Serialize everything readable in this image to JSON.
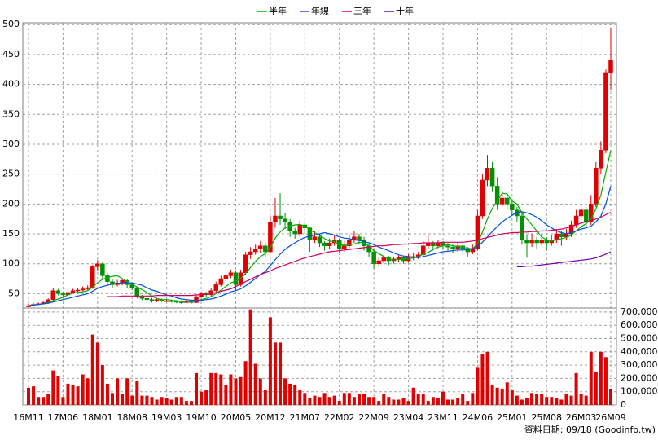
{
  "chart_data": {
    "type": "candlestick",
    "categories": [
      "16M11",
      null,
      null,
      null,
      null,
      null,
      null,
      "17M06",
      null,
      null,
      null,
      null,
      null,
      null,
      "18M01",
      null,
      null,
      null,
      null,
      null,
      null,
      "18M08",
      null,
      null,
      null,
      null,
      null,
      null,
      "19M03",
      null,
      null,
      null,
      null,
      null,
      null,
      "19M10",
      null,
      null,
      null,
      null,
      null,
      null,
      "20M05",
      null,
      null,
      null,
      null,
      null,
      null,
      "20M12",
      null,
      null,
      null,
      null,
      null,
      null,
      "21M07",
      null,
      null,
      null,
      null,
      null,
      null,
      "22M02",
      null,
      null,
      null,
      null,
      null,
      null,
      "22M09",
      null,
      null,
      null,
      null,
      null,
      null,
      "23M04",
      null,
      null,
      null,
      null,
      null,
      null,
      "23M11",
      null,
      null,
      null,
      null,
      null,
      null,
      "24M06",
      null,
      null,
      null,
      null,
      null,
      null,
      "25M01",
      null,
      null,
      null,
      null,
      null,
      null,
      "25M08",
      null,
      null,
      null,
      null,
      null,
      null,
      "26M03",
      null,
      null,
      null,
      null,
      null,
      "26M09"
    ],
    "ohlc": [
      [
        28,
        33,
        27,
        30
      ],
      [
        30,
        34,
        29,
        32
      ],
      [
        32,
        35,
        31,
        33
      ],
      [
        33,
        37,
        32,
        35
      ],
      [
        35,
        42,
        33,
        40
      ],
      [
        40,
        60,
        38,
        55
      ],
      [
        55,
        58,
        47,
        50
      ],
      [
        50,
        53,
        45,
        48
      ],
      [
        48,
        55,
        46,
        52
      ],
      [
        52,
        58,
        50,
        55
      ],
      [
        55,
        59,
        52,
        56
      ],
      [
        56,
        62,
        54,
        58
      ],
      [
        58,
        64,
        55,
        60
      ],
      [
        60,
        98,
        58,
        95
      ],
      [
        95,
        106,
        88,
        100
      ],
      [
        100,
        102,
        75,
        80
      ],
      [
        80,
        84,
        66,
        70
      ],
      [
        70,
        74,
        60,
        65
      ],
      [
        65,
        73,
        62,
        68
      ],
      [
        68,
        76,
        64,
        72
      ],
      [
        72,
        75,
        60,
        65
      ],
      [
        65,
        68,
        56,
        60
      ],
      [
        60,
        62,
        42,
        45
      ],
      [
        45,
        48,
        39,
        42
      ],
      [
        42,
        45,
        37,
        40
      ],
      [
        40,
        43,
        35,
        38
      ],
      [
        38,
        43,
        36,
        40
      ],
      [
        40,
        42,
        36,
        38
      ],
      [
        38,
        41,
        36,
        38
      ],
      [
        38,
        40,
        35,
        37
      ],
      [
        37,
        39,
        34,
        36
      ],
      [
        36,
        38,
        33,
        35
      ],
      [
        35,
        41,
        34,
        38
      ],
      [
        38,
        40,
        33,
        35
      ],
      [
        35,
        48,
        34,
        45
      ],
      [
        45,
        53,
        43,
        50
      ],
      [
        50,
        53,
        45,
        48
      ],
      [
        48,
        59,
        46,
        55
      ],
      [
        55,
        70,
        53,
        65
      ],
      [
        65,
        80,
        62,
        75
      ],
      [
        75,
        85,
        70,
        80
      ],
      [
        80,
        90,
        76,
        85
      ],
      [
        85,
        88,
        55,
        65
      ],
      [
        65,
        90,
        62,
        85
      ],
      [
        85,
        120,
        82,
        115
      ],
      [
        115,
        128,
        108,
        120
      ],
      [
        120,
        132,
        115,
        125
      ],
      [
        125,
        138,
        118,
        130
      ],
      [
        130,
        135,
        112,
        120
      ],
      [
        120,
        180,
        118,
        170
      ],
      [
        170,
        210,
        160,
        180
      ],
      [
        180,
        218,
        165,
        175
      ],
      [
        175,
        185,
        158,
        170
      ],
      [
        170,
        175,
        145,
        155
      ],
      [
        155,
        160,
        142,
        150
      ],
      [
        150,
        172,
        145,
        165
      ],
      [
        165,
        170,
        150,
        160
      ],
      [
        160,
        162,
        120,
        140
      ],
      [
        140,
        155,
        135,
        145
      ],
      [
        145,
        150,
        128,
        135
      ],
      [
        135,
        138,
        122,
        130
      ],
      [
        130,
        142,
        125,
        135
      ],
      [
        135,
        148,
        130,
        140
      ],
      [
        140,
        142,
        118,
        125
      ],
      [
        125,
        138,
        120,
        130
      ],
      [
        130,
        148,
        125,
        140
      ],
      [
        140,
        155,
        135,
        145
      ],
      [
        145,
        150,
        132,
        140
      ],
      [
        140,
        145,
        122,
        130
      ],
      [
        130,
        133,
        112,
        120
      ],
      [
        120,
        125,
        92,
        100
      ],
      [
        100,
        110,
        95,
        105
      ],
      [
        105,
        115,
        100,
        110
      ],
      [
        110,
        113,
        98,
        105
      ],
      [
        105,
        112,
        100,
        108
      ],
      [
        108,
        115,
        103,
        110
      ],
      [
        110,
        113,
        100,
        105
      ],
      [
        105,
        116,
        102,
        110
      ],
      [
        110,
        118,
        106,
        112
      ],
      [
        112,
        120,
        108,
        115
      ],
      [
        115,
        138,
        112,
        130
      ],
      [
        130,
        148,
        125,
        135
      ],
      [
        135,
        138,
        122,
        130
      ],
      [
        130,
        140,
        126,
        135
      ],
      [
        135,
        138,
        125,
        130
      ],
      [
        130,
        135,
        122,
        128
      ],
      [
        128,
        132,
        118,
        125
      ],
      [
        125,
        136,
        120,
        130
      ],
      [
        130,
        133,
        120,
        125
      ],
      [
        125,
        128,
        112,
        120
      ],
      [
        120,
        132,
        116,
        125
      ],
      [
        125,
        190,
        122,
        180
      ],
      [
        180,
        250,
        175,
        240
      ],
      [
        240,
        282,
        230,
        260
      ],
      [
        260,
        270,
        220,
        230
      ],
      [
        230,
        245,
        190,
        200
      ],
      [
        200,
        222,
        195,
        210
      ],
      [
        210,
        215,
        190,
        200
      ],
      [
        200,
        208,
        180,
        190
      ],
      [
        190,
        195,
        170,
        180
      ],
      [
        180,
        185,
        132,
        140
      ],
      [
        140,
        148,
        110,
        135
      ],
      [
        135,
        150,
        128,
        140
      ],
      [
        140,
        145,
        125,
        135
      ],
      [
        135,
        148,
        130,
        140
      ],
      [
        140,
        145,
        122,
        135
      ],
      [
        135,
        148,
        130,
        140
      ],
      [
        140,
        158,
        135,
        150
      ],
      [
        150,
        155,
        130,
        145
      ],
      [
        145,
        158,
        140,
        150
      ],
      [
        150,
        172,
        145,
        165
      ],
      [
        165,
        190,
        160,
        180
      ],
      [
        180,
        198,
        175,
        190
      ],
      [
        190,
        195,
        160,
        170
      ],
      [
        170,
        215,
        165,
        200
      ],
      [
        200,
        270,
        195,
        260
      ],
      [
        260,
        305,
        250,
        290
      ],
      [
        290,
        425,
        285,
        420
      ],
      [
        420,
        495,
        390,
        440
      ]
    ],
    "up_color": "#e00000",
    "down_color": "#009000",
    "series": [
      {
        "name": "半年",
        "color": "#00b000",
        "values": [
          30,
          31,
          32,
          33,
          35,
          38,
          41,
          44,
          48,
          51,
          52,
          53,
          55,
          61,
          68,
          74,
          77,
          79,
          80,
          75,
          70,
          66,
          61,
          57,
          52,
          46,
          42,
          40,
          40,
          39,
          38,
          37,
          37,
          37,
          38,
          40,
          42,
          45,
          50,
          56,
          62,
          68,
          71,
          75,
          84,
          94,
          104,
          112,
          117,
          127,
          143,
          153,
          160,
          163,
          165,
          166,
          163,
          157,
          152,
          148,
          142,
          138,
          137,
          132,
          131,
          132,
          133,
          136,
          135,
          130,
          122,
          117,
          112,
          108,
          106,
          107,
          108,
          108,
          110,
          112,
          116,
          119,
          124,
          128,
          130,
          132,
          130,
          129,
          128,
          126,
          125,
          134,
          153,
          175,
          193,
          205,
          218,
          217,
          205,
          200,
          185,
          175,
          165,
          155,
          145,
          140,
          138,
          140,
          142,
          144,
          148,
          155,
          162,
          167,
          175,
          192,
          215,
          253,
          290
        ]
      },
      {
        "name": "年線",
        "color": "#0050e0",
        "values": [
          30,
          31,
          32,
          33,
          34,
          36,
          38,
          40,
          42,
          44,
          46,
          48,
          50,
          54,
          59,
          62,
          64,
          66,
          67,
          68,
          68,
          68,
          66,
          64,
          60,
          56,
          54,
          51,
          48,
          46,
          43,
          41,
          40,
          39,
          39,
          39,
          40,
          41,
          43,
          46,
          49,
          53,
          55,
          58,
          63,
          69,
          75,
          82,
          87,
          97,
          107,
          116,
          124,
          130,
          135,
          140,
          144,
          146,
          148,
          150,
          152,
          150,
          148,
          145,
          143,
          142,
          140,
          139,
          137,
          135,
          132,
          128,
          125,
          122,
          118,
          115,
          113,
          112,
          111,
          110,
          112,
          114,
          116,
          118,
          120,
          121,
          122,
          123,
          123,
          124,
          125,
          129,
          136,
          145,
          154,
          162,
          170,
          176,
          181,
          186,
          187,
          185,
          182,
          178,
          172,
          165,
          160,
          155,
          152,
          150,
          152,
          155,
          158,
          160,
          163,
          170,
          180,
          200,
          230
        ]
      },
      {
        "name": "三年",
        "color": "#d0005a",
        "values": [
          null,
          null,
          null,
          null,
          null,
          null,
          null,
          null,
          null,
          null,
          null,
          null,
          null,
          null,
          null,
          null,
          45,
          45,
          45,
          46,
          46,
          46,
          46,
          46,
          46,
          46,
          47,
          47,
          47,
          47,
          47,
          47,
          47,
          47,
          48,
          48,
          49,
          50,
          52,
          54,
          56,
          58,
          62,
          66,
          70,
          74,
          78,
          82,
          85,
          88,
          92,
          95,
          98,
          101,
          104,
          107,
          110,
          112,
          114,
          116,
          118,
          120,
          121,
          122,
          123,
          124,
          125,
          126,
          127,
          128,
          129,
          130,
          130,
          131,
          132,
          132,
          133,
          133,
          134,
          134,
          135,
          135,
          135,
          135,
          136,
          136,
          136,
          136,
          136,
          137,
          138,
          140,
          142,
          144,
          146,
          148,
          150,
          151,
          152,
          152,
          153,
          153,
          154,
          154,
          155,
          155,
          156,
          157,
          158,
          160,
          162,
          165,
          168,
          170,
          172,
          175,
          178,
          182,
          186
        ]
      },
      {
        "name": "十年",
        "color": "#7000b0",
        "values": [
          null,
          null,
          null,
          null,
          null,
          null,
          null,
          null,
          null,
          null,
          null,
          null,
          null,
          null,
          null,
          null,
          null,
          null,
          null,
          null,
          null,
          null,
          null,
          null,
          null,
          null,
          null,
          null,
          null,
          null,
          null,
          null,
          null,
          null,
          null,
          null,
          null,
          null,
          null,
          null,
          null,
          null,
          null,
          null,
          null,
          null,
          null,
          null,
          null,
          null,
          null,
          null,
          null,
          null,
          null,
          null,
          null,
          null,
          null,
          null,
          null,
          null,
          null,
          null,
          null,
          null,
          null,
          null,
          null,
          null,
          null,
          null,
          null,
          null,
          null,
          null,
          null,
          null,
          null,
          null,
          null,
          null,
          null,
          null,
          null,
          null,
          null,
          null,
          null,
          null,
          null,
          null,
          null,
          null,
          null,
          null,
          null,
          null,
          null,
          95,
          95,
          96,
          96,
          97,
          98,
          99,
          100,
          101,
          102,
          103,
          104,
          105,
          106,
          107,
          108,
          110,
          113,
          116,
          120
        ]
      }
    ],
    "ylim": [
      26,
      503
    ],
    "yticks": [
      50,
      100,
      150,
      200,
      250,
      300,
      350,
      400,
      450,
      500
    ],
    "grid": true,
    "volume": {
      "color": "#e00000",
      "ylim": [
        0,
        730000
      ],
      "yticks": [
        0,
        {
          "value": 100000,
          "label": "100,000"
        },
        {
          "value": 200000,
          "label": "200,000"
        },
        {
          "value": 300000,
          "label": "300,000"
        },
        {
          "value": 400000,
          "label": "400,000"
        },
        {
          "value": 500000,
          "label": "500,000"
        },
        {
          "value": 600000,
          "label": "600,000"
        },
        {
          "value": 700000,
          "label": "700,000"
        }
      ],
      "values": [
        130000,
        140000,
        60000,
        60000,
        80000,
        260000,
        220000,
        60000,
        160000,
        150000,
        140000,
        230000,
        200000,
        530000,
        470000,
        300000,
        160000,
        90000,
        200000,
        80000,
        200000,
        70000,
        180000,
        70000,
        70000,
        60000,
        40000,
        60000,
        50000,
        40000,
        60000,
        60000,
        30000,
        30000,
        240000,
        100000,
        110000,
        240000,
        240000,
        230000,
        150000,
        230000,
        200000,
        210000,
        330000,
        720000,
        310000,
        200000,
        110000,
        660000,
        470000,
        470000,
        200000,
        160000,
        150000,
        110000,
        90000,
        50000,
        70000,
        60000,
        90000,
        60000,
        70000,
        30000,
        90000,
        90000,
        60000,
        80000,
        80000,
        60000,
        60000,
        30000,
        80000,
        60000,
        40000,
        40000,
        50000,
        30000,
        130000,
        80000,
        80000,
        30000,
        60000,
        50000,
        100000,
        40000,
        40000,
        50000,
        80000,
        30000,
        90000,
        280000,
        380000,
        400000,
        150000,
        130000,
        120000,
        170000,
        110000,
        70000,
        40000,
        50000,
        90000,
        80000,
        80000,
        60000,
        60000,
        50000,
        40000,
        80000,
        70000,
        240000,
        80000,
        70000,
        400000,
        250000,
        400000,
        360000,
        120000
      ]
    },
    "source_note": "資料日期: 09/18 (Goodinfo.tw)"
  }
}
